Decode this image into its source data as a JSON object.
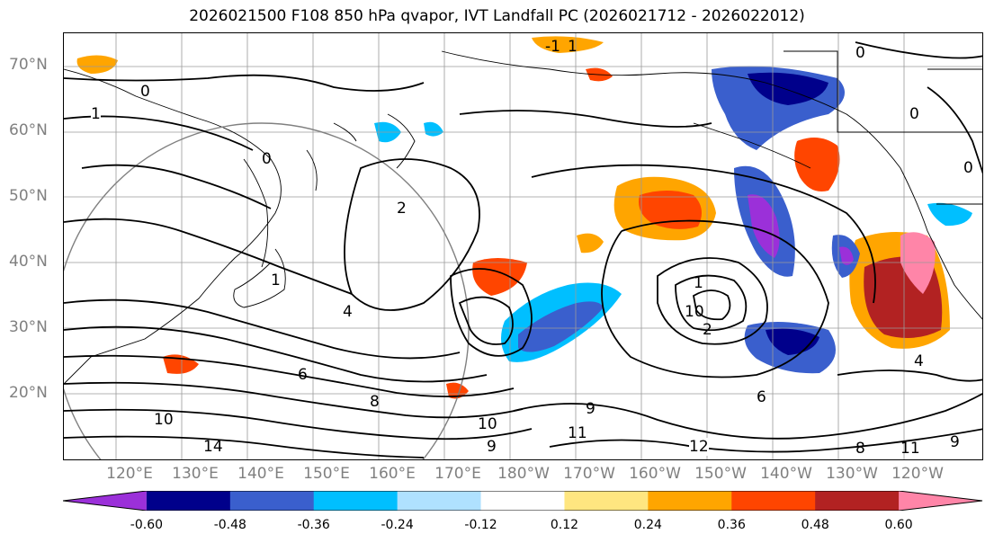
{
  "title": "2026021500 F108 850 hPa qvapor, IVT Landfall PC (2026021712 - 2026022012)",
  "lat_labels": [
    "70°N",
    "60°N",
    "50°N",
    "40°N",
    "30°N",
    "20°N"
  ],
  "lon_labels": [
    "120°E",
    "130°E",
    "140°E",
    "150°E",
    "160°E",
    "170°E",
    "180°W",
    "170°W",
    "160°W",
    "150°W",
    "140°W",
    "130°W",
    "120°W"
  ],
  "contour_labels": [
    "1",
    "0",
    "1",
    "0",
    "2",
    "1",
    "0",
    "1",
    "4",
    "6",
    "8",
    "10",
    "11",
    "12",
    "14",
    "10",
    "11",
    "9",
    "8",
    "9",
    "-1",
    "0",
    "0",
    "2",
    "4",
    "6",
    "9",
    "10"
  ],
  "colorbar": {
    "levels": [
      "-0.60",
      "-0.48",
      "-0.36",
      "-0.24",
      "-0.12",
      "0.12",
      "0.24",
      "0.36",
      "0.48",
      "0.60"
    ],
    "colors": [
      "#9b30d9",
      "#00008b",
      "#3a5fcd",
      "#00bfff",
      "#afe1ff",
      "#ffffff",
      "#ffe680",
      "#ffa500",
      "#ff4500",
      "#b22222",
      "#ff85a8"
    ]
  }
}
